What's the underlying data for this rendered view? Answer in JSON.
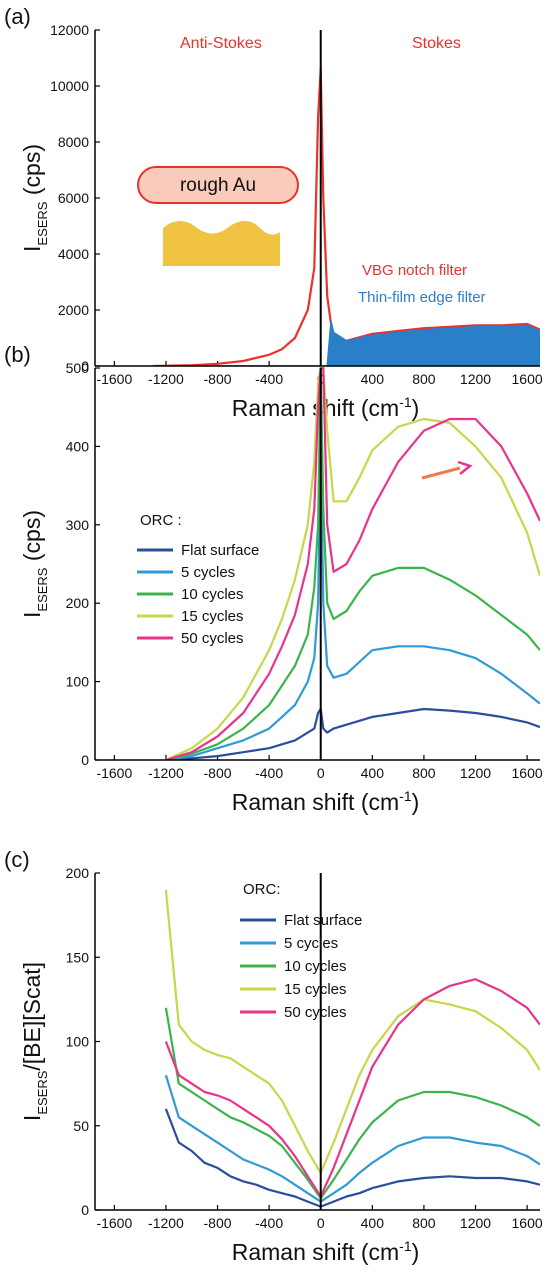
{
  "chart_data": [
    {
      "type": "line",
      "label": "(a)",
      "annotations": [
        "Anti-Stokes",
        "Stokes",
        "rough Au"
      ],
      "ylabel": "I",
      "ylabel_sub": "ESERS",
      "ylabel_suffix": " (cps)",
      "xlabel": "Raman shift (cm",
      "xlabel_sup": "-1",
      "xlabel_suffix": ")",
      "xlim": [
        -1750,
        1700
      ],
      "xticks": [
        -1600,
        -1200,
        -800,
        -400,
        0,
        400,
        800,
        1200,
        1600
      ],
      "ylim": [
        0,
        12000
      ],
      "yticks": [
        0,
        2000,
        4000,
        6000,
        8000,
        10000,
        12000
      ],
      "grid": false,
      "legend_position": "right",
      "legend_style": "text",
      "x": [
        -1300,
        -1000,
        -800,
        -600,
        -400,
        -300,
        -200,
        -100,
        -50,
        -20,
        0,
        20,
        50,
        80,
        100,
        200,
        400,
        600,
        800,
        1000,
        1200,
        1400,
        1600,
        1700
      ],
      "series": [
        {
          "name": "VBG notch filter",
          "color": "#e8322e",
          "fill": false,
          "values": [
            0,
            30,
            80,
            180,
            400,
            600,
            1000,
            2000,
            3500,
            8900,
            10600,
            6000,
            2500,
            1500,
            1000,
            900,
            1150,
            1250,
            1350,
            1400,
            1450,
            1450,
            1500,
            1300
          ]
        },
        {
          "name": "Thin-film edge filter",
          "color": "#2a7fc9",
          "fill": true,
          "values": [
            0,
            0,
            0,
            0,
            0,
            0,
            0,
            0,
            0,
            0,
            0,
            0,
            0,
            1600,
            1200,
            900,
            1100,
            1200,
            1300,
            1350,
            1400,
            1400,
            1450,
            1250
          ]
        }
      ]
    },
    {
      "type": "line",
      "label": "(b)",
      "legend_title": "ORC :",
      "ylabel": "I",
      "ylabel_sub": "ESERS",
      "ylabel_suffix": " (cps)",
      "xlabel": "Raman shift (cm",
      "xlabel_sup": "-1",
      "xlabel_suffix": ")",
      "xlim": [
        -1750,
        1700
      ],
      "xticks": [
        -1600,
        -1200,
        -800,
        -400,
        0,
        400,
        800,
        1200,
        1600
      ],
      "ylim": [
        0,
        500
      ],
      "yticks": [
        0,
        100,
        200,
        300,
        400,
        500
      ],
      "grid": false,
      "legend_position": "left",
      "legend_style": "line",
      "x": [
        -1200,
        -1000,
        -800,
        -600,
        -400,
        -300,
        -200,
        -100,
        -50,
        -20,
        0,
        20,
        50,
        100,
        200,
        300,
        400,
        600,
        800,
        1000,
        1200,
        1400,
        1600,
        1700
      ],
      "series": [
        {
          "name": "Flat surface",
          "color": "#2a4d9c",
          "values": [
            0,
            2,
            5,
            10,
            15,
            20,
            25,
            35,
            40,
            60,
            65,
            40,
            35,
            40,
            45,
            50,
            55,
            60,
            65,
            63,
            60,
            55,
            48,
            42
          ]
        },
        {
          "name": "5 cycles",
          "color": "#2f9ad8",
          "values": [
            0,
            5,
            15,
            25,
            40,
            55,
            70,
            100,
            130,
            200,
            400,
            200,
            120,
            105,
            110,
            125,
            140,
            145,
            145,
            140,
            130,
            110,
            85,
            72
          ]
        },
        {
          "name": "10 cycles",
          "color": "#3bb54a",
          "values": [
            0,
            8,
            20,
            40,
            70,
            95,
            120,
            160,
            220,
            300,
            500,
            320,
            200,
            180,
            190,
            215,
            235,
            245,
            245,
            230,
            210,
            185,
            160,
            140
          ]
        },
        {
          "name": "15 cycles",
          "color": "#c9d64a",
          "values": [
            0,
            15,
            40,
            80,
            140,
            180,
            230,
            300,
            380,
            480,
            500,
            500,
            420,
            330,
            330,
            360,
            395,
            425,
            435,
            430,
            400,
            360,
            290,
            235
          ]
        },
        {
          "name": "50 cycles",
          "color": "#e8348a",
          "values": [
            0,
            10,
            30,
            60,
            110,
            145,
            185,
            250,
            320,
            450,
            500,
            500,
            300,
            240,
            250,
            280,
            320,
            380,
            420,
            435,
            435,
            400,
            340,
            305
          ]
        }
      ]
    },
    {
      "type": "line",
      "label": "(c)",
      "legend_title": "ORC:",
      "ylabel": "I",
      "ylabel_sub": "ESERS",
      "ylabel_suffix": "/[BE][Scat]",
      "xlabel": "Raman shift (cm",
      "xlabel_sup": "-1",
      "xlabel_suffix": ")",
      "xlim": [
        -1750,
        1700
      ],
      "xticks": [
        -1600,
        -1200,
        -800,
        -400,
        0,
        400,
        800,
        1200,
        1600
      ],
      "ylim": [
        0,
        200
      ],
      "yticks": [
        0,
        50,
        100,
        150,
        200
      ],
      "grid": false,
      "legend_position": "upper-center",
      "legend_style": "line",
      "x": [
        -1200,
        -1100,
        -1000,
        -900,
        -800,
        -700,
        -600,
        -500,
        -400,
        -300,
        -200,
        -100,
        0,
        100,
        200,
        300,
        400,
        600,
        800,
        1000,
        1200,
        1400,
        1600,
        1700
      ],
      "series": [
        {
          "name": "Flat surface",
          "color": "#2a4d9c",
          "values": [
            60,
            40,
            35,
            28,
            25,
            20,
            17,
            15,
            12,
            10,
            8,
            5,
            2,
            5,
            8,
            10,
            13,
            17,
            19,
            20,
            19,
            19,
            17,
            15
          ]
        },
        {
          "name": "5 cycles",
          "color": "#2f9ad8",
          "values": [
            80,
            55,
            50,
            45,
            40,
            35,
            30,
            27,
            24,
            20,
            15,
            10,
            5,
            10,
            15,
            22,
            28,
            38,
            43,
            43,
            40,
            38,
            32,
            27
          ]
        },
        {
          "name": "10 cycles",
          "color": "#3bb54a",
          "values": [
            120,
            75,
            70,
            65,
            60,
            55,
            52,
            48,
            44,
            38,
            28,
            18,
            7,
            18,
            30,
            42,
            52,
            65,
            70,
            70,
            67,
            62,
            55,
            50
          ]
        },
        {
          "name": "15 cycles",
          "color": "#c9d64a",
          "values": [
            190,
            110,
            100,
            95,
            92,
            90,
            85,
            80,
            75,
            65,
            50,
            35,
            22,
            40,
            60,
            80,
            95,
            115,
            125,
            122,
            118,
            108,
            95,
            83
          ]
        },
        {
          "name": "50 cycles",
          "color": "#e8348a",
          "values": [
            100,
            80,
            75,
            70,
            68,
            65,
            60,
            55,
            50,
            42,
            32,
            20,
            8,
            25,
            45,
            65,
            85,
            110,
            125,
            133,
            137,
            130,
            120,
            110
          ]
        }
      ]
    }
  ]
}
